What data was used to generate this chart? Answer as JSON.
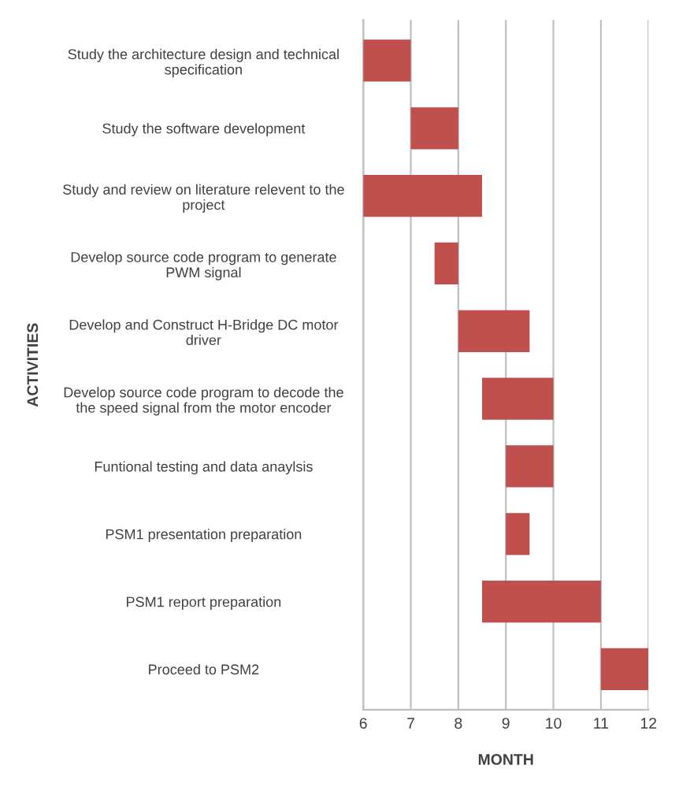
{
  "chart_data": {
    "type": "bar",
    "orientation": "horizontal",
    "xlabel": "MONTH",
    "ylabel": "ACTIVITIES",
    "categories": [
      "Study the architecture design and technical\nspecification",
      "Study the software development",
      "Study and review on literature relevent to the\nproject",
      "Develop source code program to generate\nPWM signal",
      "Develop and Construct H-Bridge DC motor\ndriver",
      "Develop source code program to decode the\nthe speed signal from the motor encoder",
      "Funtional testing and data anaylsis",
      "PSM1 presentation preparation",
      "PSM1 report preparation",
      "Proceed to PSM2"
    ],
    "base": [
      6,
      7,
      6,
      7.5,
      8,
      8.5,
      9,
      9,
      8.5,
      11
    ],
    "values": [
      1,
      1,
      2.5,
      0.5,
      1.5,
      1.5,
      1,
      0.5,
      2.5,
      1
    ],
    "color": "#c0504d",
    "xlim": [
      6,
      12
    ],
    "xticks": [
      6,
      7,
      8,
      9,
      10,
      11,
      12
    ],
    "grid": "x",
    "legend": false
  }
}
